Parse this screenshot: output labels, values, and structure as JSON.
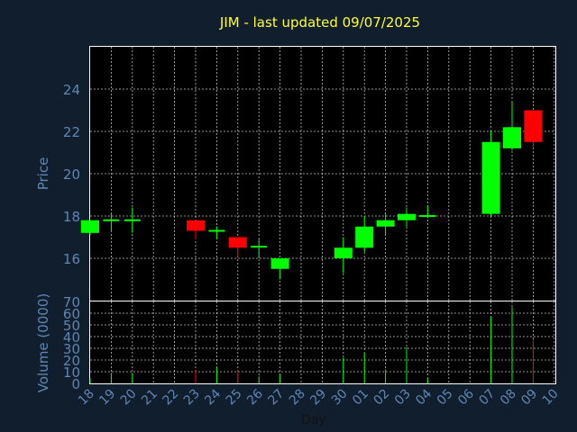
{
  "title": "JIM - last updated 09/07/2025",
  "price_axis_label": "Price",
  "volume_axis_label": "Volume (0000)",
  "x_axis_label": "Day",
  "colors": {
    "background": "#111e2e",
    "plot_background": "#000000",
    "up": "#00ff00",
    "down": "#ff0000",
    "grid": "#ffffff",
    "title": "#ffff33",
    "axis_text": "#5f86b3"
  },
  "chart_data": [
    {
      "type": "candlestick",
      "ylim": [
        14.0,
        26.0
      ],
      "yticks": [
        16,
        18,
        20,
        22,
        24
      ],
      "ylabel": "Price",
      "grid": true,
      "x": [
        "18",
        "19",
        "20",
        "21",
        "22",
        "23",
        "24",
        "25",
        "26",
        "27",
        "28",
        "29",
        "30",
        "01",
        "02",
        "03",
        "04",
        "05",
        "06",
        "07",
        "08",
        "09",
        "10"
      ],
      "candles": [
        {
          "x": "18",
          "open": 17.2,
          "close": 17.8,
          "high": 17.8,
          "low": 17.1
        },
        {
          "x": "19",
          "open": 17.75,
          "close": 17.8,
          "high": 18.1,
          "low": 17.3
        },
        {
          "x": "20",
          "open": 17.75,
          "close": 17.8,
          "high": 18.4,
          "low": 17.2
        },
        {
          "x": "23",
          "open": 17.8,
          "close": 17.3,
          "high": 17.8,
          "low": 16.9
        },
        {
          "x": "24",
          "open": 17.25,
          "close": 17.3,
          "high": 17.5,
          "low": 16.9
        },
        {
          "x": "25",
          "open": 17.0,
          "close": 16.5,
          "high": 17.0,
          "low": 16.0
        },
        {
          "x": "26",
          "open": 16.5,
          "close": 16.55,
          "high": 16.9,
          "low": 16.0
        },
        {
          "x": "27",
          "open": 15.5,
          "close": 16.0,
          "high": 16.0,
          "low": 15.0
        },
        {
          "x": "30",
          "open": 16.0,
          "close": 16.5,
          "high": 17.0,
          "low": 15.3
        },
        {
          "x": "01",
          "open": 16.5,
          "close": 17.5,
          "high": 18.0,
          "low": 16.3
        },
        {
          "x": "02",
          "open": 17.5,
          "close": 17.8,
          "high": 18.1,
          "low": 17.1
        },
        {
          "x": "03",
          "open": 17.8,
          "close": 18.1,
          "high": 18.4,
          "low": 17.5
        },
        {
          "x": "04",
          "open": 17.95,
          "close": 18.0,
          "high": 18.5,
          "low": 17.9
        },
        {
          "x": "07",
          "open": 18.1,
          "close": 21.5,
          "high": 22.0,
          "low": 18.0
        },
        {
          "x": "08",
          "open": 21.2,
          "close": 22.2,
          "high": 23.4,
          "low": 21.1
        },
        {
          "x": "09",
          "open": 23.0,
          "close": 21.5,
          "high": 23.0,
          "low": 21.2
        }
      ]
    },
    {
      "type": "bar",
      "ylim": [
        0,
        70
      ],
      "yticks": [
        0,
        10,
        20,
        30,
        40,
        50,
        60,
        70
      ],
      "ylabel": "Volume (0000)",
      "xlabel": "Day",
      "grid": true,
      "x": [
        "18",
        "19",
        "20",
        "21",
        "22",
        "23",
        "24",
        "25",
        "26",
        "27",
        "28",
        "29",
        "30",
        "01",
        "02",
        "03",
        "04",
        "05",
        "06",
        "07",
        "08",
        "09",
        "10"
      ],
      "bars": [
        {
          "x": "18",
          "value": 4,
          "direction": "up"
        },
        {
          "x": "19",
          "value": 9,
          "direction": "up"
        },
        {
          "x": "20",
          "value": 9,
          "direction": "up"
        },
        {
          "x": "23",
          "value": 11,
          "direction": "down"
        },
        {
          "x": "24",
          "value": 14,
          "direction": "up"
        },
        {
          "x": "25",
          "value": 11,
          "direction": "down"
        },
        {
          "x": "26",
          "value": 6,
          "direction": "up"
        },
        {
          "x": "27",
          "value": 8,
          "direction": "up"
        },
        {
          "x": "30",
          "value": 22,
          "direction": "up"
        },
        {
          "x": "01",
          "value": 26,
          "direction": "up"
        },
        {
          "x": "02",
          "value": 12,
          "direction": "up"
        },
        {
          "x": "03",
          "value": 31,
          "direction": "up"
        },
        {
          "x": "04",
          "value": 4,
          "direction": "up"
        },
        {
          "x": "07",
          "value": 57,
          "direction": "up"
        },
        {
          "x": "08",
          "value": 65,
          "direction": "up"
        },
        {
          "x": "09",
          "value": 38,
          "direction": "down"
        }
      ]
    }
  ]
}
